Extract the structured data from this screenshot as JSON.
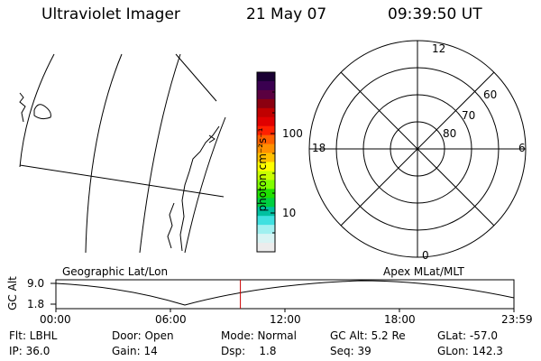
{
  "header": {
    "title": "Ultraviolet Imager",
    "date": "21 May 07",
    "time": "09:39:50 UT"
  },
  "colorbar": {
    "unit_label": "photon cm⁻²s⁻¹",
    "tick_100": "100",
    "tick_10": "10",
    "colors": [
      "#1a0033",
      "#3a0050",
      "#5a0040",
      "#8b0010",
      "#c00000",
      "#e00000",
      "#ff2000",
      "#ff6000",
      "#ff9000",
      "#ffc000",
      "#ffff00",
      "#c8ff00",
      "#80ff00",
      "#20e000",
      "#00d040",
      "#00c0a0",
      "#40e0e0",
      "#a0f0f0",
      "#d8f4f4",
      "#ececec"
    ]
  },
  "polar": {
    "labels": [
      "12",
      "6",
      "18",
      "0",
      "60",
      "70",
      "80"
    ]
  },
  "timeline": {
    "y_label": "GC Alt",
    "y_ticks": [
      "9.0",
      "1.8"
    ],
    "left_title": "Geographic Lat/Lon",
    "right_title": "Apex MLat/MLT",
    "x_ticks": [
      "00:00",
      "06:00",
      "12:00",
      "18:00",
      "23:59"
    ],
    "current_marker_color": "#cc0000",
    "current_time_fraction": 0.4027
  },
  "info": {
    "flt": "Flt: LBHL",
    "ip": "IP: 36.0",
    "door": "Door: Open",
    "gain": "Gain: 14",
    "mode": "Mode: Normal",
    "dsp": "Dsp:    1.8",
    "gcalt": "GC Alt: 5.2 Re",
    "seq": "Seq: 39",
    "glat": "GLat: -57.0",
    "glon": "GLon: 142.3"
  }
}
